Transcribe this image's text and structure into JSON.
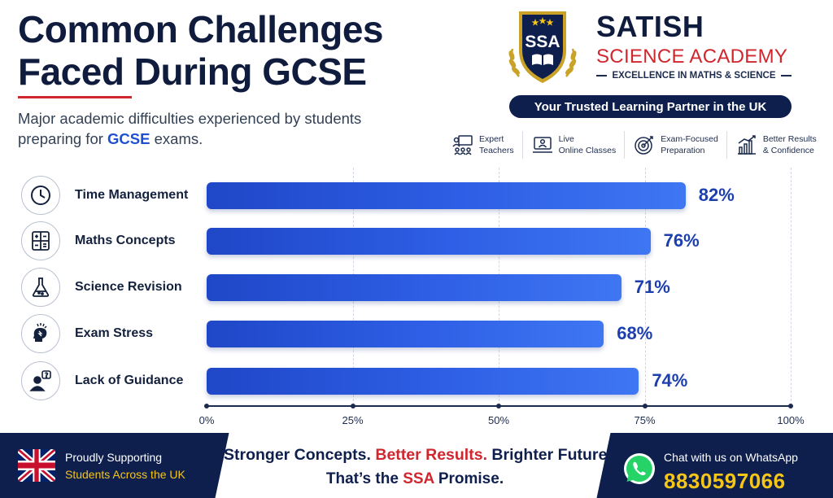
{
  "header": {
    "title_line1": "Common Challenges",
    "title_line2": "Faced During GCSE",
    "subtitle_pre": "Major academic difficulties experienced by students preparing for ",
    "subtitle_highlight": "GCSE",
    "subtitle_post": " exams."
  },
  "brand": {
    "logo_text": "SSA",
    "name": "SATISH",
    "sub": "SCIENCE ACADEMY",
    "tagline": "EXCELLENCE IN MATHS & SCIENCE",
    "pill": "Your Trusted Learning Partner in the UK",
    "features": [
      {
        "icon": "teacher-icon",
        "text": "Expert\nTeachers"
      },
      {
        "icon": "laptop-icon",
        "text": "Live\nOnline Classes"
      },
      {
        "icon": "target-icon",
        "text": "Exam-Focused\nPreparation"
      },
      {
        "icon": "growth-chart-icon",
        "text": "Better Results\n& Confidence"
      }
    ]
  },
  "chart_data": {
    "type": "bar",
    "orientation": "horizontal",
    "categories": [
      "Time Management",
      "Maths Concepts",
      "Science Revision",
      "Exam Stress",
      "Lack of Guidance"
    ],
    "values": [
      82,
      76,
      71,
      68,
      74
    ],
    "value_labels": [
      "82%",
      "76%",
      "71%",
      "68%",
      "74%"
    ],
    "category_icons": [
      "clock-icon",
      "calculator-icon",
      "flask-icon",
      "stress-head-icon",
      "question-person-icon"
    ],
    "xlim": [
      0,
      100
    ],
    "xticks": [
      "0%",
      "25%",
      "50%",
      "75%",
      "100%"
    ],
    "grid": true,
    "bar_color": "#2e5fe6"
  },
  "footer": {
    "left_line1": "Proudly Supporting",
    "left_line2": "Students Across the UK",
    "slogan_a": "Stronger Concepts. ",
    "slogan_b": "Better Results.",
    "slogan_c": " Brighter Futures.",
    "promise_a": "That’s the ",
    "promise_b": "SSA",
    "promise_c": " Promise.",
    "whatsapp_label": "Chat with us on WhatsApp",
    "whatsapp_number": "8830597066"
  },
  "colors": {
    "navy": "#0e1f4d",
    "red": "#d0262d",
    "blue": "#1f4fd1",
    "gold": "#f5c518"
  }
}
